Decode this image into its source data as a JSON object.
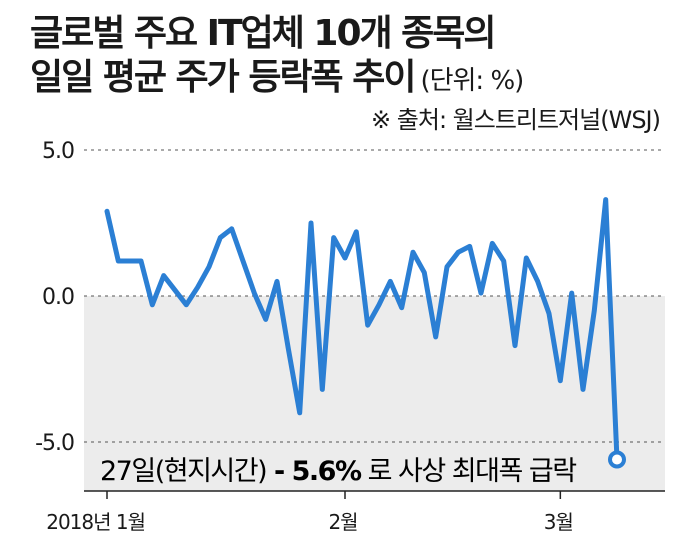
{
  "title_line1": "글로벌 주요 IT업체 10개 종목의",
  "title_line2": "일일 평균 주가 등락폭 추이",
  "unit": "(단위: %)",
  "source": "※ 출처: 월스트리트저널(WSJ)",
  "annotation": {
    "prefix": "27일(현지시간)",
    "value": " - 5.6%",
    "suffix": " 로 사상 최대폭 급락"
  },
  "colors": {
    "line": "#2b7fd4",
    "shade": "#ececec",
    "grid": "#555555"
  },
  "chart_data": {
    "type": "line",
    "title": "글로벌 주요 IT업체 10개 종목의 일일 평균 주가 등락폭 추이",
    "ylabel": "",
    "xlabel": "",
    "ylim": [
      -7,
      5
    ],
    "yticks": [
      5.0,
      0.0,
      -5.0
    ],
    "ytick_labels": [
      "5.0",
      "0.0",
      "-5.0"
    ],
    "xticks": [
      {
        "label": "2018년 1월",
        "index": 0
      },
      {
        "label": "2월",
        "index": 21
      },
      {
        "label": "3월",
        "index": 40
      }
    ],
    "grid": "dashed horizontal at 5.0, 0.0, -5.0",
    "shaded_region": "below 0",
    "series": [
      {
        "values": [
          2.9,
          1.2,
          1.2,
          1.2,
          -0.3,
          0.7,
          0.2,
          -0.3,
          0.3,
          1.0,
          2.0,
          2.3,
          1.2,
          0.1,
          -0.8,
          0.5,
          -1.8,
          -4.0,
          2.5,
          -3.2,
          2.0,
          1.3,
          2.2,
          -1.0,
          -0.3,
          0.5,
          -0.4,
          1.5,
          0.8,
          -1.4,
          1.0,
          1.5,
          1.7,
          0.1,
          1.8,
          1.2,
          -1.7,
          1.3,
          0.5,
          -0.6,
          -2.9,
          0.1,
          -3.2,
          -0.5,
          3.3,
          -5.6
        ],
        "last_point_label": "27일(현지시간) - 5.6% 로 사상 최대폭 급락"
      }
    ]
  }
}
